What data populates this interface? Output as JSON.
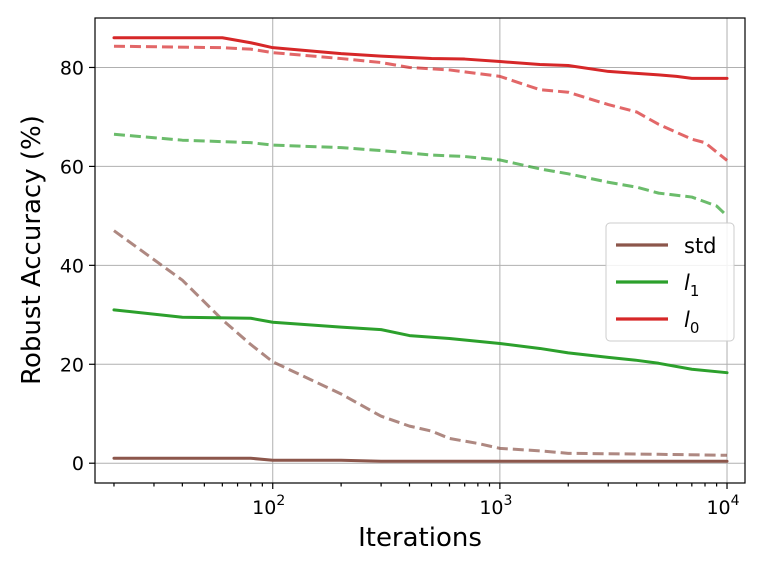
{
  "chart_data": {
    "type": "line",
    "xlabel": "Iterations",
    "ylabel": "Robust Accuracy (%)",
    "xscale": "log",
    "xlim": [
      16.5,
      12000
    ],
    "ylim": [
      -4,
      90
    ],
    "grid": true,
    "legend_position": "center-right",
    "x_ticks": [
      {
        "value": 100,
        "base": "10",
        "exp": "2"
      },
      {
        "value": 1000,
        "base": "10",
        "exp": "3"
      },
      {
        "value": 10000,
        "base": "10",
        "exp": "4"
      }
    ],
    "y_ticks": [
      0,
      20,
      40,
      60,
      80
    ],
    "series": [
      {
        "name": "std",
        "color": "#8c564b",
        "style": "solid",
        "in_legend": true,
        "points": [
          [
            20,
            1.0
          ],
          [
            80,
            1.0
          ],
          [
            100,
            0.6
          ],
          [
            200,
            0.6
          ],
          [
            300,
            0.4
          ],
          [
            1000,
            0.4
          ],
          [
            10000,
            0.4
          ]
        ]
      },
      {
        "name": "std",
        "color": "#8c564b",
        "style": "dashed",
        "in_legend": false,
        "points": [
          [
            20,
            47
          ],
          [
            40,
            37
          ],
          [
            60,
            29
          ],
          [
            80,
            24
          ],
          [
            100,
            20.5
          ],
          [
            200,
            14
          ],
          [
            300,
            9.5
          ],
          [
            400,
            7.5
          ],
          [
            500,
            6.5
          ],
          [
            600,
            5
          ],
          [
            800,
            4
          ],
          [
            1000,
            3
          ],
          [
            1500,
            2.5
          ],
          [
            2000,
            2
          ],
          [
            5000,
            1.8
          ],
          [
            10000,
            1.6
          ]
        ]
      },
      {
        "name": "l1",
        "color": "#2ca02c",
        "style": "solid",
        "in_legend": true,
        "points": [
          [
            20,
            31
          ],
          [
            40,
            29.5
          ],
          [
            80,
            29.3
          ],
          [
            100,
            28.5
          ],
          [
            200,
            27.5
          ],
          [
            300,
            27
          ],
          [
            400,
            25.8
          ],
          [
            600,
            25.2
          ],
          [
            1000,
            24.2
          ],
          [
            1500,
            23.2
          ],
          [
            2000,
            22.3
          ],
          [
            3000,
            21.4
          ],
          [
            4000,
            20.8
          ],
          [
            5000,
            20.2
          ],
          [
            7000,
            19
          ],
          [
            10000,
            18.3
          ]
        ]
      },
      {
        "name": "l1",
        "color": "#2ca02c",
        "style": "dashed",
        "in_legend": false,
        "points": [
          [
            20,
            66.5
          ],
          [
            40,
            65.3
          ],
          [
            80,
            64.8
          ],
          [
            100,
            64.3
          ],
          [
            200,
            63.8
          ],
          [
            300,
            63.2
          ],
          [
            500,
            62.3
          ],
          [
            700,
            62
          ],
          [
            1000,
            61.3
          ],
          [
            1500,
            59.5
          ],
          [
            2000,
            58.5
          ],
          [
            3000,
            56.8
          ],
          [
            4000,
            55.8
          ],
          [
            5000,
            54.6
          ],
          [
            7000,
            53.8
          ],
          [
            9000,
            52
          ],
          [
            10000,
            50
          ]
        ]
      },
      {
        "name": "l0",
        "color": "#d62728",
        "style": "solid",
        "in_legend": true,
        "points": [
          [
            20,
            86
          ],
          [
            60,
            86
          ],
          [
            80,
            85
          ],
          [
            100,
            84
          ],
          [
            200,
            82.8
          ],
          [
            300,
            82.3
          ],
          [
            500,
            81.8
          ],
          [
            700,
            81.7
          ],
          [
            1000,
            81.2
          ],
          [
            1500,
            80.6
          ],
          [
            2000,
            80.4
          ],
          [
            3000,
            79.2
          ],
          [
            4000,
            78.8
          ],
          [
            5000,
            78.5
          ],
          [
            6000,
            78.2
          ],
          [
            7000,
            77.8
          ],
          [
            10000,
            77.8
          ]
        ]
      },
      {
        "name": "l0",
        "color": "#d62728",
        "style": "dashed",
        "in_legend": false,
        "points": [
          [
            20,
            84.3
          ],
          [
            60,
            84
          ],
          [
            80,
            83.7
          ],
          [
            100,
            83
          ],
          [
            200,
            81.8
          ],
          [
            300,
            81
          ],
          [
            400,
            80
          ],
          [
            600,
            79.5
          ],
          [
            1000,
            78.2
          ],
          [
            1500,
            75.5
          ],
          [
            2000,
            75
          ],
          [
            3000,
            72.5
          ],
          [
            4000,
            71
          ],
          [
            5000,
            68.5
          ],
          [
            7000,
            65.5
          ],
          [
            8000,
            64.8
          ],
          [
            10000,
            61.2
          ]
        ]
      }
    ],
    "legend": [
      {
        "text": "std",
        "color": "#8c564b",
        "italic": false,
        "sub": ""
      },
      {
        "text": "l",
        "color": "#2ca02c",
        "italic": true,
        "sub": "1"
      },
      {
        "text": "l",
        "color": "#d62728",
        "italic": true,
        "sub": "0"
      }
    ]
  }
}
